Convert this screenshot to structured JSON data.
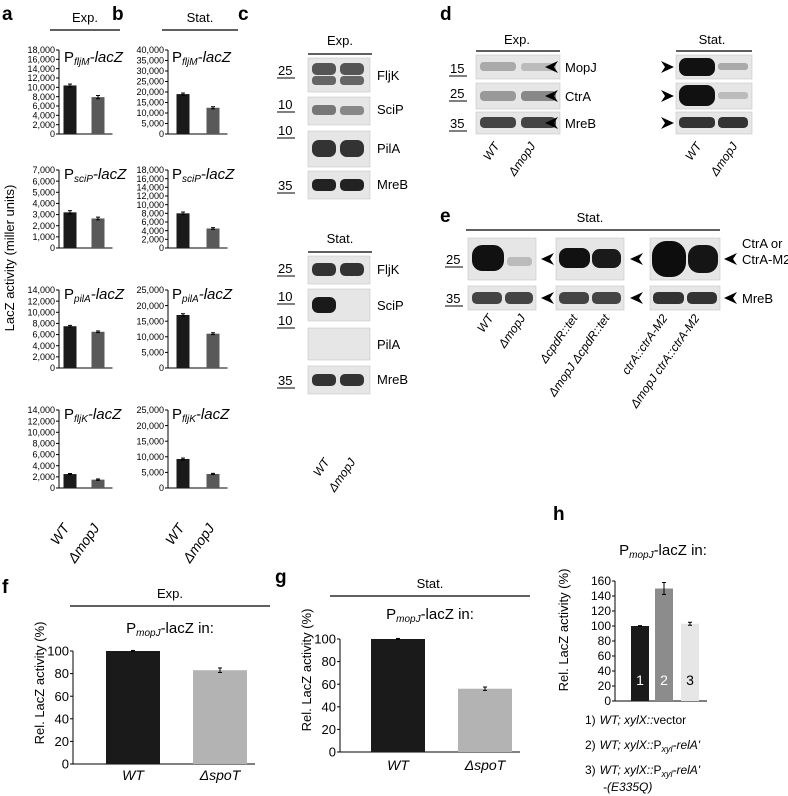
{
  "panels": {
    "a": {
      "letter": "a",
      "header": "Exp."
    },
    "b": {
      "letter": "b",
      "header": "Stat."
    },
    "c": {
      "letter": "c",
      "header_top": "Exp.",
      "header_bottom": "Stat."
    },
    "d": {
      "letter": "d",
      "header_left": "Exp.",
      "header_right": "Stat."
    },
    "e": {
      "letter": "e",
      "header": "Stat."
    },
    "f": {
      "letter": "f",
      "header": "Exp."
    },
    "g": {
      "letter": "g",
      "header": "Stat."
    },
    "h": {
      "letter": "h"
    }
  },
  "ab_ylabel": "LacZ activity (miller units)",
  "promoters": {
    "fljM": {
      "P": "P",
      "sub": "fljM",
      "gene": "-lacZ"
    },
    "sciP": {
      "P": "P",
      "sub": "sciP",
      "gene": "-lacZ"
    },
    "pilA": {
      "P": "P",
      "sub": "pilA",
      "gene": "-lacZ"
    },
    "fljK": {
      "P": "P",
      "sub": "fljK",
      "gene": "-lacZ"
    },
    "mopJ": {
      "P": "P",
      "sub": "mopJ",
      "gene": "-lacZ in:"
    }
  },
  "strains": {
    "wt": "WT",
    "mopj": "ΔmopJ",
    "spot": "ΔspoT"
  },
  "blots": {
    "c_top": [
      {
        "label": "FljK",
        "marker": "25"
      },
      {
        "label": "SciP",
        "marker": "10"
      },
      {
        "label": "PilA",
        "marker": "10"
      },
      {
        "label": "MreB",
        "marker": "35"
      }
    ],
    "c_bottom": [
      {
        "label": "FljK",
        "marker": "25"
      },
      {
        "label": "SciP",
        "marker": "10"
      },
      {
        "label": "PilA",
        "marker": "10"
      },
      {
        "label": "MreB",
        "marker": "35"
      }
    ],
    "d": [
      {
        "label": "MopJ",
        "marker": "15"
      },
      {
        "label": "CtrA",
        "marker": "25"
      },
      {
        "label": "MreB",
        "marker": "35"
      }
    ],
    "e": [
      {
        "label_line1": "CtrA or",
        "label_line2": "CtrA-M2",
        "marker": "25"
      },
      {
        "label": "MreB",
        "marker": "35"
      }
    ],
    "e_lanes": [
      "WT",
      "ΔmopJ",
      "ΔcpdR::tet",
      "ΔmopJ ΔcpdR::tet",
      "ctrA::ctrA-M2",
      "ΔmopJ ctrA::ctrA-M2"
    ]
  },
  "rel_ylabel": "Rel. LacZ activity (%)",
  "legend_h": [
    {
      "num": "1)",
      "pre": "WT; xylX::",
      "post": "vector",
      "sub": "",
      "tail": "",
      "line2": ""
    },
    {
      "num": "2)",
      "pre": "WT; xylX::",
      "post": "P",
      "sub": "xyl",
      "tail": "-relA'",
      "line2": ""
    },
    {
      "num": "3)",
      "pre": "WT; xylX::",
      "post": "P",
      "sub": "xyl",
      "tail": "-relA'",
      "line2": "-(E335Q)"
    }
  ],
  "chart_data": [
    {
      "type": "bar",
      "panel": "a",
      "title": "PfljM-lacZ",
      "categories": [
        "WT",
        "ΔmopJ"
      ],
      "values": [
        10400,
        7900
      ],
      "errors": [
        300,
        350
      ],
      "ylim": [
        0,
        18000
      ],
      "ticks": [
        0,
        2000,
        4000,
        6000,
        8000,
        10000,
        12000,
        14000,
        16000,
        18000
      ],
      "colors": [
        "#1a1a1a",
        "#595959"
      ]
    },
    {
      "type": "bar",
      "panel": "a",
      "title": "PsciP-lacZ",
      "categories": [
        "WT",
        "ΔmopJ"
      ],
      "values": [
        3200,
        2650
      ],
      "errors": [
        150,
        120
      ],
      "ylim": [
        0,
        7000
      ],
      "ticks": [
        0,
        1000,
        2000,
        3000,
        4000,
        5000,
        6000,
        7000
      ],
      "colors": [
        "#1a1a1a",
        "#595959"
      ]
    },
    {
      "type": "bar",
      "panel": "a",
      "title": "PpilA-lacZ",
      "categories": [
        "WT",
        "ΔmopJ"
      ],
      "values": [
        7500,
        6500
      ],
      "errors": [
        150,
        150
      ],
      "ylim": [
        0,
        14000
      ],
      "ticks": [
        0,
        2000,
        4000,
        6000,
        8000,
        10000,
        12000,
        14000
      ],
      "colors": [
        "#1a1a1a",
        "#595959"
      ]
    },
    {
      "type": "bar",
      "panel": "a",
      "title": "PfljK-lacZ",
      "categories": [
        "WT",
        "ΔmopJ"
      ],
      "values": [
        2500,
        1500
      ],
      "errors": [
        100,
        120
      ],
      "ylim": [
        0,
        14000
      ],
      "ticks": [
        0,
        2000,
        4000,
        6000,
        8000,
        10000,
        12000,
        14000
      ],
      "colors": [
        "#1a1a1a",
        "#595959"
      ]
    },
    {
      "type": "bar",
      "panel": "b",
      "title": "PfljM-lacZ",
      "categories": [
        "WT",
        "ΔmopJ"
      ],
      "values": [
        19000,
        12500
      ],
      "errors": [
        500,
        500
      ],
      "ylim": [
        0,
        40000
      ],
      "ticks": [
        0,
        5000,
        10000,
        15000,
        20000,
        25000,
        30000,
        35000,
        40000
      ],
      "colors": [
        "#1a1a1a",
        "#595959"
      ]
    },
    {
      "type": "bar",
      "panel": "b",
      "title": "PsciP-lacZ",
      "categories": [
        "WT",
        "ΔmopJ"
      ],
      "values": [
        8000,
        4500
      ],
      "errors": [
        300,
        200
      ],
      "ylim": [
        0,
        18000
      ],
      "ticks": [
        0,
        2000,
        4000,
        6000,
        8000,
        10000,
        12000,
        14000,
        16000,
        18000
      ],
      "colors": [
        "#1a1a1a",
        "#595959"
      ]
    },
    {
      "type": "bar",
      "panel": "b",
      "title": "PpilA-lacZ",
      "categories": [
        "WT",
        "ΔmopJ"
      ],
      "values": [
        17000,
        11000
      ],
      "errors": [
        400,
        300
      ],
      "ylim": [
        0,
        25000
      ],
      "ticks": [
        0,
        5000,
        10000,
        15000,
        20000,
        25000
      ],
      "colors": [
        "#1a1a1a",
        "#595959"
      ]
    },
    {
      "type": "bar",
      "panel": "b",
      "title": "PfljK-lacZ",
      "categories": [
        "WT",
        "ΔmopJ"
      ],
      "values": [
        9300,
        4500
      ],
      "errors": [
        300,
        200
      ],
      "ylim": [
        0,
        25000
      ],
      "ticks": [
        0,
        5000,
        10000,
        15000,
        20000,
        25000
      ],
      "colors": [
        "#1a1a1a",
        "#595959"
      ]
    },
    {
      "type": "bar",
      "panel": "f",
      "title": "PmopJ-lacZ in:",
      "ylabel": "Rel. LacZ activity (%)",
      "categories": [
        "WT",
        "ΔspoT"
      ],
      "values": [
        100,
        83
      ],
      "errors": [
        0.5,
        2
      ],
      "ylim": [
        0,
        100
      ],
      "ticks": [
        0,
        20,
        40,
        60,
        80,
        100
      ],
      "colors": [
        "#1a1a1a",
        "#b3b3b3"
      ]
    },
    {
      "type": "bar",
      "panel": "g",
      "title": "PmopJ-lacZ in:",
      "ylabel": "Rel. LacZ activity (%)",
      "categories": [
        "WT",
        "ΔspoT"
      ],
      "values": [
        100,
        56
      ],
      "errors": [
        0.5,
        1.5
      ],
      "ylim": [
        0,
        100
      ],
      "ticks": [
        0,
        20,
        40,
        60,
        80,
        100
      ],
      "colors": [
        "#1a1a1a",
        "#b3b3b3"
      ]
    },
    {
      "type": "bar",
      "panel": "h",
      "title": "PmopJ-lacZ in:",
      "ylabel": "Rel. LacZ activity (%)",
      "categories": [
        "1",
        "2",
        "3"
      ],
      "values": [
        100,
        150,
        103
      ],
      "errors": [
        0.5,
        8,
        2
      ],
      "ylim": [
        0,
        160
      ],
      "ticks": [
        0,
        20,
        40,
        60,
        80,
        100,
        120,
        140,
        160
      ],
      "colors": [
        "#1a1a1a",
        "#8c8c8c",
        "#e6e6e6"
      ]
    }
  ]
}
